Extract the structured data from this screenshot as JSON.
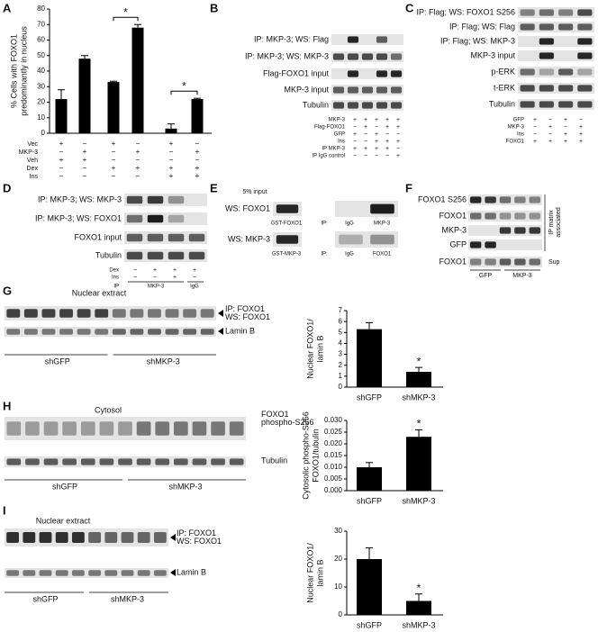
{
  "chart_data": [
    {
      "type": "bar",
      "ylabel": [
        "% Cells with FOXO1",
        "predominantly in nucleus"
      ],
      "categories": [
        null,
        null,
        null,
        null,
        null,
        null
      ],
      "values": [
        22,
        48,
        33,
        68,
        3,
        22
      ],
      "errors": [
        6,
        2,
        0.5,
        2,
        3,
        0.5
      ],
      "color": "#000000",
      "ylim": [
        0,
        80
      ],
      "yticks": [
        0,
        10,
        20,
        30,
        40,
        50,
        60,
        70,
        80
      ],
      "annotations": [
        "*",
        "*"
      ],
      "conditions": [
        {
          "name": "Vec",
          "signs": [
            "+",
            "−",
            "+",
            "−",
            "+",
            "−"
          ]
        },
        {
          "name": "MKP-3",
          "signs": [
            "−",
            "+",
            "−",
            "+",
            "−",
            "+"
          ]
        },
        {
          "name": "Veh",
          "signs": [
            "+",
            "+",
            "−",
            "−",
            "−",
            "−"
          ]
        },
        {
          "name": "Dex",
          "signs": [
            "−",
            "−",
            "+",
            "+",
            "+",
            "+"
          ]
        },
        {
          "name": "Ins",
          "signs": [
            "−",
            "−",
            "−",
            "−",
            "+",
            "+"
          ]
        }
      ]
    },
    {
      "type": "bar",
      "ylabel": [
        "Nuclear FOXO1/",
        "lamin B"
      ],
      "categories": [
        "shGFP",
        "shMKP-3"
      ],
      "values": [
        5.3,
        1.4
      ],
      "errors": [
        0.6,
        0.4
      ],
      "color": "#000000",
      "ylim": [
        0,
        7
      ],
      "yticks": [
        0,
        1,
        2,
        3,
        4,
        5,
        6,
        7
      ],
      "annotations": [
        "*"
      ]
    },
    {
      "type": "bar",
      "ylabel": [
        "Cytosolic phospho-S256",
        "FOXO1/tubulin"
      ],
      "categories": [
        "shGFP",
        "shMKP-3"
      ],
      "values": [
        0.01,
        0.023
      ],
      "errors": [
        0.002,
        0.003
      ],
      "color": "#000000",
      "ylim": [
        0,
        0.03
      ],
      "yticks": [
        {
          "value": 0,
          "label": "0.000"
        },
        0.005,
        {
          "value": 0.01,
          "label": "0.010"
        },
        0.015,
        {
          "value": 0.02,
          "label": "0.020"
        },
        0.025,
        {
          "value": 0.03,
          "label": "0.030"
        }
      ],
      "annotations": [
        "*"
      ]
    },
    {
      "type": "bar",
      "ylabel": [
        "Nuclear FOXO1/",
        "lamin B"
      ],
      "categories": [
        "shGFP",
        "shMKP-3"
      ],
      "values": [
        20,
        5
      ],
      "errors": [
        4,
        2.5
      ],
      "color": "#000000",
      "ylim": [
        0,
        30
      ],
      "yticks": [
        0,
        10,
        20,
        30
      ],
      "annotations": [
        "*"
      ]
    }
  ],
  "panels": {
    "letters": [
      "A",
      "B",
      "C",
      "D",
      "E",
      "F",
      "G",
      "H",
      "I"
    ],
    "B": {
      "rows": [
        "IP: MKP-3; WS: Flag",
        "IP: MKP-3; WS: MKP-3",
        "Flag-FOXO1 input",
        "MKP-3 input",
        "Tubulin"
      ],
      "conditions": [
        {
          "name": "MKP-3",
          "signs": [
            "+",
            "+",
            "+",
            "+",
            "+"
          ]
        },
        {
          "name": "Flag-FOXO1",
          "signs": [
            "−",
            "+",
            "−",
            "+",
            "+"
          ]
        },
        {
          "name": "GFP",
          "signs": [
            "+",
            "−",
            "+",
            "−",
            "−"
          ]
        },
        {
          "name": "Ins",
          "signs": [
            "−",
            "−",
            "+",
            "+",
            "+"
          ]
        },
        {
          "name": "IP MKP-3",
          "signs": [
            "+",
            "+",
            "+",
            "+",
            "−"
          ]
        },
        {
          "name": "IP IgG control",
          "signs": [
            "−",
            "−",
            "−",
            "−",
            "+"
          ]
        }
      ]
    },
    "C": {
      "rows": [
        "IP: Flag; WS: FOXO1 S256",
        "IP: Flag; WS: Flag",
        "IP: Flag; WS: MKP-3",
        "MKP-3 input",
        "p-ERK",
        "t-ERK",
        "Tubulin"
      ],
      "conditions": [
        {
          "name": "GFP",
          "signs": [
            "+",
            "−",
            "+",
            "−"
          ]
        },
        {
          "name": "MKP-3",
          "signs": [
            "−",
            "+",
            "−",
            "+"
          ]
        },
        {
          "name": "Ins",
          "signs": [
            "−",
            "−",
            "+",
            "+"
          ]
        },
        {
          "name": "FOXO1",
          "signs": [
            "+",
            "+",
            "+",
            "+"
          ]
        }
      ]
    },
    "D": {
      "rows": [
        "IP: MKP-3; WS: MKP-3",
        "IP: MKP-3; WS: FOXO1",
        "FOXO1 input",
        "Tubulin"
      ],
      "conditions": [
        {
          "name": "Dex",
          "signs": [
            "−",
            "+",
            "+",
            "+"
          ]
        },
        {
          "name": "Ins",
          "signs": [
            "−",
            "−",
            "+",
            "−"
          ]
        }
      ],
      "ip": {
        "name": "IP",
        "groups": [
          "MKP-3",
          "IgG"
        ]
      }
    },
    "E": {
      "input_label": "5% input",
      "rows": [
        "WS: FOXO1",
        "WS: MKP-3"
      ],
      "inputs": [
        "GST-FOXO1",
        "GST-MKP-3"
      ],
      "ip_rows": [
        [
          "IP:",
          "IgG",
          "MKP-3"
        ],
        [
          "IP:",
          "IgG",
          "FOXO1"
        ]
      ]
    },
    "F": {
      "rows": [
        "FOXO1 S256",
        "FOXO1",
        "MKP-3",
        "GFP",
        "FOXO1"
      ],
      "side": [
        "IP matrix",
        "associated"
      ],
      "sup": "Sup",
      "groups": [
        "GFP",
        "MKP-3"
      ]
    },
    "G": {
      "title": "Nuclear extract",
      "rows": [
        [
          "IP: FOXO1",
          "WS: FOXO1"
        ],
        [
          "Lamin B"
        ]
      ],
      "groups": [
        "shGFP",
        "shMKP-3"
      ]
    },
    "H": {
      "title": "Cytosol",
      "rows": [
        [
          "FOXO1",
          "phospho-S256"
        ],
        [
          "Tubulin"
        ]
      ],
      "groups": [
        "shGFP",
        "shMKP-3"
      ]
    },
    "I": {
      "title": "Nuclear extract",
      "rows": [
        [
          "IP: FOXO1",
          "WS: FOXO1"
        ],
        [
          "Lamin B"
        ]
      ],
      "groups": [
        "shGFP",
        "shMKP-3"
      ]
    }
  }
}
